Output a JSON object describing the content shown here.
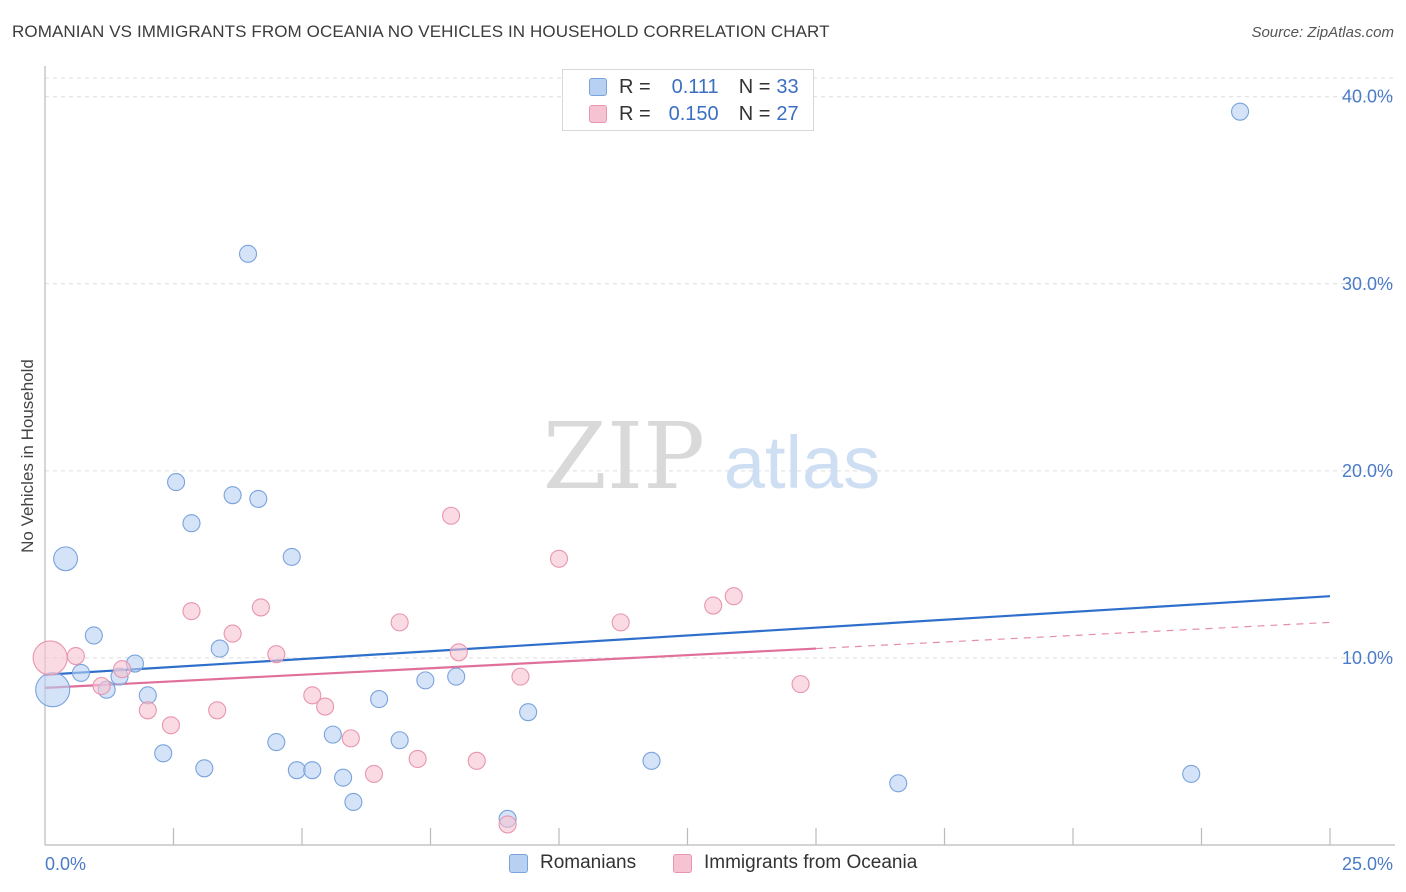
{
  "title": "ROMANIAN VS IMMIGRANTS FROM OCEANIA NO VEHICLES IN HOUSEHOLD CORRELATION CHART",
  "source": "Source: ZipAtlas.com",
  "watermark": {
    "zip": "ZIP",
    "atlas": "atlas"
  },
  "legend": {
    "rows": [
      {
        "r_label": "R =",
        "r_value": "0.111",
        "n_label": "N =",
        "n_value": "33"
      },
      {
        "r_label": "R =",
        "r_value": "0.150",
        "n_label": "N =",
        "n_value": "27"
      }
    ]
  },
  "bottom_legend": {
    "series1": "Romanians",
    "series2": "Immigrants from Oceania"
  },
  "colors": {
    "blue_fill": "#b8d1f3",
    "blue_stroke": "#7aa3dc",
    "blue_line": "#2f6fcc",
    "pink_fill": "#f6c3d2",
    "pink_stroke": "#e895ae",
    "pink_line": "#e0709a",
    "axis_text": "#4a7bc8"
  },
  "chart_data": {
    "type": "scatter",
    "title": "ROMANIAN VS IMMIGRANTS FROM OCEANIA NO VEHICLES IN HOUSEHOLD CORRELATION CHART",
    "xlabel": "",
    "ylabel": "No Vehicles in Household",
    "xlim": [
      0,
      25
    ],
    "ylim": [
      0,
      41
    ],
    "x_tick_labels": [
      "0.0%",
      "25.0%"
    ],
    "y_ticks": [
      10,
      20,
      30,
      40
    ],
    "y_tick_labels": [
      "10.0%",
      "20.0%",
      "30.0%",
      "40.0%"
    ],
    "grid": true,
    "series": [
      {
        "name": "Romanians",
        "points": [
          {
            "x": 0.4,
            "y": 15.3,
            "s": 1.4
          },
          {
            "x": 0.7,
            "y": 9.2,
            "s": 1
          },
          {
            "x": 0.95,
            "y": 11.2,
            "s": 1
          },
          {
            "x": 1.2,
            "y": 8.3,
            "s": 1
          },
          {
            "x": 1.45,
            "y": 9.0,
            "s": 1
          },
          {
            "x": 1.75,
            "y": 9.7,
            "s": 1
          },
          {
            "x": 2.0,
            "y": 8.0,
            "s": 1
          },
          {
            "x": 2.3,
            "y": 4.9,
            "s": 1
          },
          {
            "x": 2.55,
            "y": 19.4,
            "s": 1
          },
          {
            "x": 2.85,
            "y": 17.2,
            "s": 1
          },
          {
            "x": 3.1,
            "y": 4.1,
            "s": 1
          },
          {
            "x": 3.4,
            "y": 10.5,
            "s": 1
          },
          {
            "x": 3.65,
            "y": 18.7,
            "s": 1
          },
          {
            "x": 3.95,
            "y": 31.6,
            "s": 1
          },
          {
            "x": 4.15,
            "y": 18.5,
            "s": 1
          },
          {
            "x": 4.5,
            "y": 5.5,
            "s": 1
          },
          {
            "x": 4.8,
            "y": 15.4,
            "s": 1
          },
          {
            "x": 4.9,
            "y": 4.0,
            "s": 1
          },
          {
            "x": 5.2,
            "y": 4.0,
            "s": 1
          },
          {
            "x": 5.6,
            "y": 5.9,
            "s": 1
          },
          {
            "x": 5.8,
            "y": 3.6,
            "s": 1
          },
          {
            "x": 6.0,
            "y": 2.3,
            "s": 1
          },
          {
            "x": 6.5,
            "y": 7.8,
            "s": 1
          },
          {
            "x": 6.9,
            "y": 5.6,
            "s": 1
          },
          {
            "x": 7.4,
            "y": 8.8,
            "s": 1
          },
          {
            "x": 8.0,
            "y": 9.0,
            "s": 1
          },
          {
            "x": 9.0,
            "y": 1.4,
            "s": 1
          },
          {
            "x": 9.4,
            "y": 7.1,
            "s": 1
          },
          {
            "x": 11.8,
            "y": 4.5,
            "s": 1
          },
          {
            "x": 16.6,
            "y": 3.3,
            "s": 1
          },
          {
            "x": 22.3,
            "y": 3.8,
            "s": 1
          },
          {
            "x": 23.25,
            "y": 39.2,
            "s": 1
          },
          {
            "x": 0.15,
            "y": 8.3,
            "s": 2.0
          }
        ],
        "trend": {
          "x1": 0,
          "y1": 9.1,
          "x2": 25,
          "y2": 13.3
        }
      },
      {
        "name": "Immigrants from Oceania",
        "points": [
          {
            "x": 0.1,
            "y": 10.0,
            "s": 2.0
          },
          {
            "x": 0.6,
            "y": 10.1,
            "s": 1
          },
          {
            "x": 1.1,
            "y": 8.5,
            "s": 1
          },
          {
            "x": 1.5,
            "y": 9.4,
            "s": 1
          },
          {
            "x": 2.0,
            "y": 7.2,
            "s": 1
          },
          {
            "x": 2.45,
            "y": 6.4,
            "s": 1
          },
          {
            "x": 2.85,
            "y": 12.5,
            "s": 1
          },
          {
            "x": 3.35,
            "y": 7.2,
            "s": 1
          },
          {
            "x": 3.65,
            "y": 11.3,
            "s": 1
          },
          {
            "x": 4.2,
            "y": 12.7,
            "s": 1
          },
          {
            "x": 4.5,
            "y": 10.2,
            "s": 1
          },
          {
            "x": 5.2,
            "y": 8.0,
            "s": 1
          },
          {
            "x": 5.45,
            "y": 7.4,
            "s": 1
          },
          {
            "x": 5.95,
            "y": 5.7,
            "s": 1
          },
          {
            "x": 6.4,
            "y": 3.8,
            "s": 1
          },
          {
            "x": 6.9,
            "y": 11.9,
            "s": 1
          },
          {
            "x": 7.25,
            "y": 4.6,
            "s": 1
          },
          {
            "x": 7.9,
            "y": 17.6,
            "s": 1
          },
          {
            "x": 8.05,
            "y": 10.3,
            "s": 1
          },
          {
            "x": 8.4,
            "y": 4.5,
            "s": 1
          },
          {
            "x": 9.25,
            "y": 9.0,
            "s": 1
          },
          {
            "x": 9.0,
            "y": 1.1,
            "s": 1
          },
          {
            "x": 10.0,
            "y": 15.3,
            "s": 1
          },
          {
            "x": 11.2,
            "y": 11.9,
            "s": 1
          },
          {
            "x": 13.0,
            "y": 12.8,
            "s": 1
          },
          {
            "x": 13.4,
            "y": 13.3,
            "s": 1
          },
          {
            "x": 14.7,
            "y": 8.6,
            "s": 1
          }
        ],
        "trend": {
          "x1": 0,
          "y1": 8.4,
          "x2": 15.0,
          "y2": 10.5
        },
        "trend_dashed": {
          "x1": 15.0,
          "y1": 10.5,
          "x2": 25,
          "y2": 11.9
        }
      }
    ]
  }
}
